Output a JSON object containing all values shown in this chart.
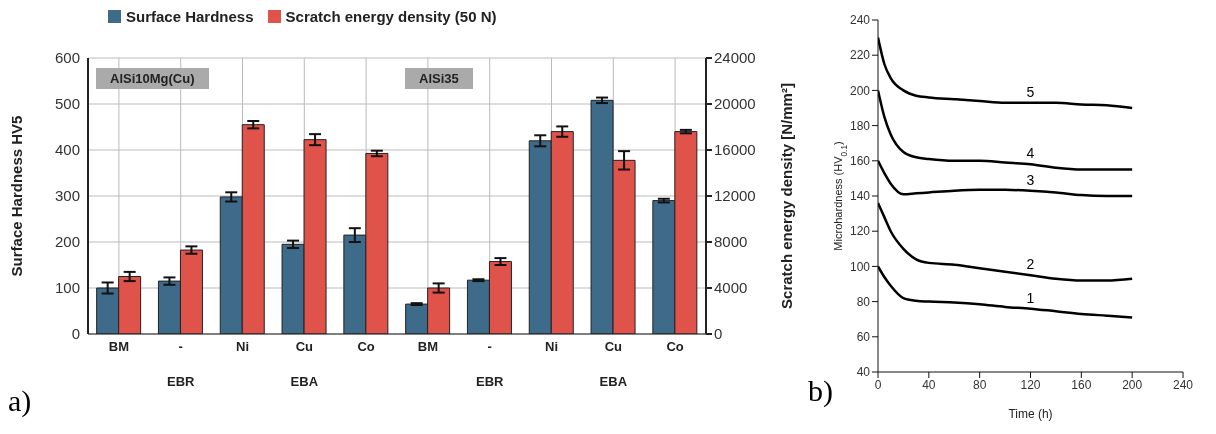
{
  "chart_data": [
    {
      "type": "bar",
      "categories": [
        "BM",
        "-",
        "Ni",
        "Cu",
        "Co",
        "BM",
        "-",
        "Ni",
        "Cu",
        "Co"
      ],
      "ylabel": "Surface Hardness HV5",
      "y2label": "Scratch energy density [N/mm²]",
      "ylim": [
        0,
        600
      ],
      "yticks": [
        0,
        100,
        200,
        300,
        400,
        500,
        600
      ],
      "y2lim": [
        0,
        24000
      ],
      "y2ticks": [
        0,
        4000,
        8000,
        12000,
        16000,
        20000,
        24000
      ],
      "grid": true,
      "legend": "top",
      "series": [
        {
          "name": "Surface Hardness",
          "color": "#3e6b8a",
          "values": [
            100,
            115,
            298,
            195,
            215,
            65,
            117,
            420,
            508,
            290
          ],
          "errors": [
            12,
            8,
            10,
            8,
            15,
            2,
            2,
            12,
            6,
            4
          ]
        },
        {
          "name": "Scratch energy density (50 N)",
          "color": "#e0534a",
          "axis": "y2",
          "values": [
            5000,
            7300,
            18200,
            16900,
            15700,
            4000,
            6300,
            17600,
            15100,
            17600
          ],
          "errors": [
            400,
            320,
            320,
            480,
            240,
            400,
            300,
            450,
            800,
            150
          ]
        }
      ],
      "annotations": [
        "AlSi10Mg(Cu)",
        "AlSi35",
        "EBR",
        "EBA",
        "EBR",
        "EBA",
        "a)"
      ]
    },
    {
      "type": "line",
      "xlabel": "Time (h)",
      "ylabel": "Microhardness (HV$_{0.1}$)",
      "xlim": [
        0,
        240
      ],
      "xticks": [
        0,
        40,
        80,
        120,
        160,
        200,
        240
      ],
      "ylim": [
        40,
        240
      ],
      "yticks": [
        40,
        60,
        80,
        100,
        120,
        140,
        160,
        180,
        200,
        220,
        240
      ],
      "marker": "none",
      "line_style": "solid",
      "legend": false,
      "x": [
        0,
        5,
        10,
        20,
        30,
        40,
        60,
        80,
        100,
        120,
        140,
        160,
        180,
        200
      ],
      "series": [
        {
          "name": "1",
          "color": "#000000",
          "values": [
            100,
            94,
            89,
            82,
            80.5,
            80,
            79.5,
            78.5,
            77,
            76,
            74.5,
            73,
            72,
            71
          ]
        },
        {
          "name": "2",
          "color": "#000000",
          "values": [
            136,
            128,
            120,
            110,
            104,
            102,
            101,
            99,
            97,
            95,
            93,
            92,
            92,
            93
          ]
        },
        {
          "name": "3",
          "color": "#000000",
          "values": [
            160,
            153,
            147,
            141,
            141.5,
            142,
            143,
            143.5,
            143.5,
            143,
            142,
            140.5,
            140,
            140
          ]
        },
        {
          "name": "4",
          "color": "#000000",
          "values": [
            200,
            185,
            175,
            165,
            162,
            161,
            160,
            160,
            159,
            158,
            156,
            155,
            155,
            155
          ]
        },
        {
          "name": "5",
          "color": "#000000",
          "values": [
            230,
            215,
            207,
            200,
            197,
            196,
            195,
            194,
            193,
            193,
            193,
            192,
            191.5,
            190
          ]
        }
      ],
      "annotations": [
        "b)"
      ]
    }
  ]
}
